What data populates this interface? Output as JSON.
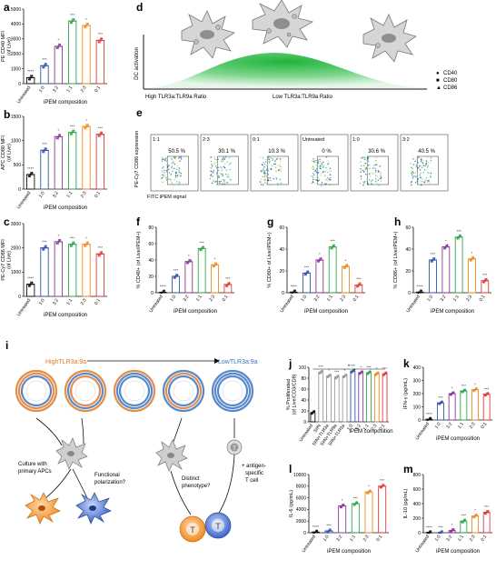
{
  "panel_labels": [
    "a",
    "b",
    "c",
    "d",
    "e",
    "f",
    "g",
    "h",
    "i",
    "j",
    "k",
    "l",
    "m"
  ],
  "colors": {
    "untreated": "#111111",
    "c1_0": "#3455a8",
    "c3_2": "#8a3a9a",
    "c1_1": "#2ca84a",
    "c2_3": "#f08a22",
    "c0_1": "#e23a3a",
    "gray": "#9a9a9a",
    "orange_text": "#e07a2a",
    "blue_text": "#3a74c2"
  },
  "chart_data": [
    {
      "id": "a",
      "type": "bar",
      "ylabel": "PE CD40 MFI\n(of Live)",
      "xlabel": "iPEM composition",
      "categories": [
        "Untreated",
        "1:0",
        "3:2",
        "1:1",
        "2:3",
        "0:1"
      ],
      "values": [
        400,
        1200,
        2500,
        4200,
        3900,
        2900
      ],
      "ylim": [
        0,
        5000
      ],
      "yticks": [
        0,
        1000,
        2000,
        3000,
        4000,
        5000
      ],
      "yticklabels": [
        "0",
        "1000",
        "2000",
        "3000",
        "4000",
        "5000"
      ]
    },
    {
      "id": "b",
      "type": "bar",
      "ylabel": "APC CD80 MFI\n(of Live)",
      "xlabel": "iPEM composition",
      "categories": [
        "Untreated",
        "1:0",
        "3:2",
        "1:1",
        "2:3",
        "0:1"
      ],
      "values": [
        300,
        800,
        1080,
        1170,
        1290,
        1130
      ],
      "ylim": [
        0,
        1500
      ],
      "yticks": [
        0,
        500,
        1000,
        1500
      ],
      "yticklabels": [
        "0",
        "500",
        "1000",
        "1500"
      ]
    },
    {
      "id": "c",
      "type": "bar",
      "ylabel": "PE-Cy7 CD86 MFI\n(of Live)",
      "xlabel": "iPEM composition",
      "categories": [
        "Untreated",
        "1:0",
        "3:2",
        "1:1",
        "2:3",
        "0:1"
      ],
      "values": [
        500,
        2000,
        2250,
        2150,
        2150,
        1750
      ],
      "ylim": [
        0,
        3000
      ],
      "yticks": [
        0,
        1000,
        2000,
        3000
      ],
      "yticklabels": [
        "0",
        "1000",
        "2000",
        "3000"
      ]
    },
    {
      "id": "f",
      "type": "bar",
      "ylabel": "% CD40+ (of Live/iPEM+)",
      "xlabel": "iPEM composition",
      "categories": [
        "Untreated",
        "1:0",
        "3:2",
        "1:1",
        "2:3",
        "0:1"
      ],
      "values": [
        0.5,
        20,
        38,
        54,
        34,
        10
      ],
      "ylim": [
        0,
        80
      ],
      "yticks": [
        0,
        20,
        40,
        60,
        80
      ],
      "yticklabels": [
        "0",
        "20",
        "40",
        "60",
        "80"
      ]
    },
    {
      "id": "g",
      "type": "bar",
      "ylabel": "% CD80+ of Live/iPEM+)",
      "xlabel": "iPEM composition",
      "categories": [
        "Untreated",
        "1:0",
        "3:2",
        "1:1",
        "2:3",
        "0:1"
      ],
      "values": [
        0.5,
        18,
        30,
        42,
        24,
        7
      ],
      "ylim": [
        0,
        60
      ],
      "yticks": [
        0,
        20,
        40,
        60
      ],
      "yticklabels": [
        "0",
        "20",
        "40",
        "60"
      ]
    },
    {
      "id": "h",
      "type": "bar",
      "ylabel": "% CD86+ (of Live/iPEM+)",
      "xlabel": "iPEM composition",
      "categories": [
        "Untreated",
        "1:0",
        "3:2",
        "1:1",
        "2:3",
        "0:1"
      ],
      "values": [
        0.5,
        30,
        42,
        51,
        31,
        11
      ],
      "ylim": [
        0,
        60
      ],
      "yticks": [
        0,
        20,
        40,
        60
      ],
      "yticklabels": [
        "0",
        "20",
        "40",
        "60"
      ]
    },
    {
      "id": "j",
      "type": "bar",
      "ylabel": "% Proliferated\n(of Live/CD3/CD8)",
      "xlabel": "iPEM composition",
      "categories": [
        "Untreated",
        "SIIN",
        "SIIN+TLR3a",
        "SIIN+TLR9a",
        "SIIN+TLR3a",
        "1:0",
        "3:2",
        "1:1",
        "2:3",
        "0:1"
      ],
      "values": [
        17,
        91,
        84,
        82,
        84,
        93,
        90,
        90,
        88,
        88
      ],
      "ylim": [
        0,
        100
      ],
      "yticks": [
        0,
        20,
        40,
        60,
        80,
        100
      ],
      "yticklabels": [
        "0",
        "20",
        "40",
        "60",
        "80",
        "100"
      ],
      "annotation": "*"
    },
    {
      "id": "k",
      "type": "bar",
      "ylabel": "IFN-γ (pg/mL)",
      "xlabel": "iPEM composition",
      "categories": [
        "Untreated",
        "1:0",
        "3:2",
        "1:1",
        "2:3",
        "0:1"
      ],
      "values": [
        5,
        130,
        200,
        220,
        230,
        195
      ],
      "ylim": [
        0,
        400
      ],
      "yticks": [
        0,
        100,
        200,
        300,
        400
      ],
      "yticklabels": [
        "0",
        "100",
        "200",
        "300",
        "400"
      ]
    },
    {
      "id": "l",
      "type": "bar",
      "ylabel": "IL-6 (pg/mL)",
      "xlabel": "iPEM composition",
      "categories": [
        "Untreated",
        "1:0",
        "3:2",
        "1:1",
        "2:3",
        "0:1"
      ],
      "values": [
        100,
        300,
        4600,
        5000,
        7000,
        8000
      ],
      "ylim": [
        0,
        10000
      ],
      "yticks": [
        0,
        2000,
        4000,
        6000,
        8000,
        10000
      ],
      "yticklabels": [
        "0",
        "2000",
        "4000",
        "6000",
        "8000",
        "10000"
      ]
    },
    {
      "id": "m",
      "type": "bar",
      "ylabel": "IL-10 (pg/mL)",
      "xlabel": "iPEM composition",
      "categories": [
        "Untreated",
        "1:0",
        "3:2",
        "1:1",
        "2:3",
        "0:1"
      ],
      "values": [
        0,
        0,
        30,
        160,
        230,
        280
      ],
      "ylim": [
        0,
        800
      ],
      "yticks": [
        0,
        200,
        400,
        600,
        800
      ],
      "yticklabels": [
        "0",
        "200",
        "400",
        "600",
        "800"
      ]
    }
  ],
  "panel_d": {
    "ylabel": "DC activation",
    "x_left": "High TLR3a:TLR9a Ratio",
    "x_right": "Low TLR3a:TLR9a Ratio",
    "legend": [
      "CD40",
      "CD80",
      "CD86"
    ]
  },
  "panel_e": {
    "ylabel": "PE-Cy7 CD86 expression",
    "xlabel": "FITC iPEM signal",
    "plots": [
      {
        "label": "1:1",
        "pct": "50.5 %"
      },
      {
        "label": "2:3",
        "pct": "30.1 %"
      },
      {
        "label": "0:1",
        "pct": "10.3 %"
      },
      {
        "label": "Untreated",
        "pct": "0 %"
      },
      {
        "label": "1:0",
        "pct": "30.6 %"
      },
      {
        "label": "3:2",
        "pct": "40.5 %"
      }
    ]
  },
  "panel_i": {
    "high_label": "HighTLR3a:9a",
    "low_label": "LowTLR3a:9a",
    "culture_label": "Culture with\nprimary APCs",
    "functional_label": "Functional\npolarization?",
    "distinct_label": "Distinct\nphenotype?",
    "antigen_label": "+ antigen-\nspecific\nT cell",
    "t_cell_glyph": "T"
  }
}
